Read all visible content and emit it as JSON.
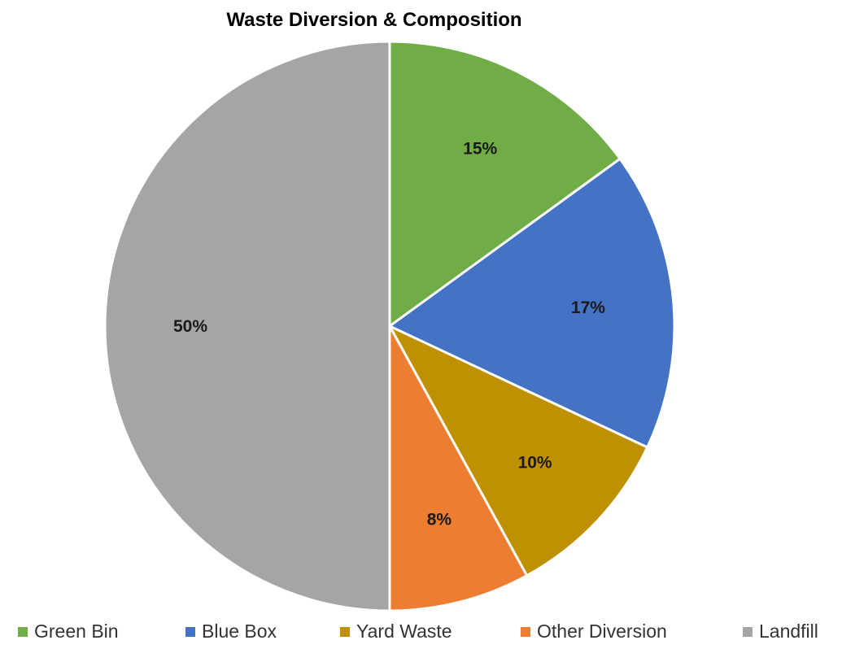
{
  "chart_data": {
    "type": "pie",
    "title": "Waste Diversion & Composition",
    "categories": [
      "Green Bin",
      "Blue Box",
      "Yard Waste",
      "Other Diversion",
      "Landfill"
    ],
    "values": [
      15,
      17,
      10,
      8,
      50
    ],
    "data_labels": [
      "15%",
      "17%",
      "10%",
      "8%",
      "50%"
    ],
    "colors": [
      "#70ad47",
      "#4472c4",
      "#bf9000",
      "#ed7d31",
      "#a5a5a5"
    ],
    "start_angle": "12 o'clock",
    "direction": "clockwise",
    "legend_position": "bottom"
  }
}
